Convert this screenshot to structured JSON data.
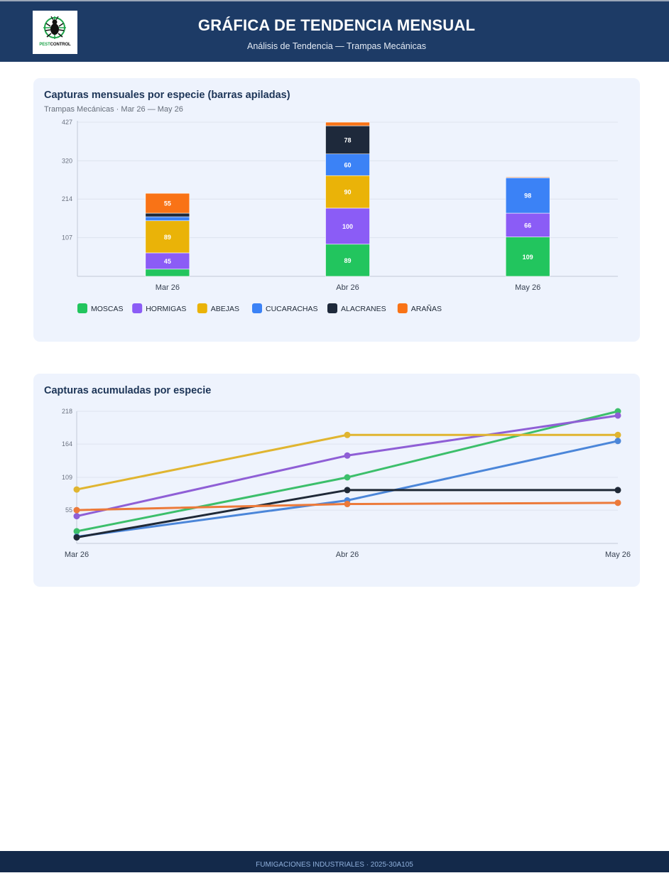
{
  "header": {
    "title": "GRÁFICA DE TENDENCIA MENSUAL",
    "subtitle": "Análisis de Tendencia — Trampas Mecánicas",
    "logo_text_a": "PEST",
    "logo_text_b": "CONTROL"
  },
  "footer": {
    "text": "FUMIGACIONES INDUSTRIALES · 2025-30A105"
  },
  "chart_data": [
    {
      "type": "bar",
      "stacked": true,
      "title": "Capturas mensuales por especie (barras apiladas)",
      "subtitle": "Trampas Mecánicas · Mar 26 — May 26",
      "categories": [
        "Mar 26",
        "Abr 26",
        "May 26"
      ],
      "ylim": [
        0,
        427
      ],
      "yticks": [
        "107",
        "214",
        "320",
        "427"
      ],
      "grid": true,
      "legend_position": "bottom-left",
      "series": [
        {
          "name": "MOSCAS",
          "color": "#22c55e",
          "values": [
            20,
            89,
            109
          ]
        },
        {
          "name": "HORMIGAS",
          "color": "#8b5cf6",
          "values": [
            45,
            100,
            66
          ]
        },
        {
          "name": "ABEJAS",
          "color": "#eab308",
          "values": [
            89,
            90,
            0
          ]
        },
        {
          "name": "CUCARACHAS",
          "color": "#3b82f6",
          "values": [
            11,
            60,
            98
          ]
        },
        {
          "name": "ALACRANES",
          "color": "#1e293b",
          "values": [
            10,
            78,
            0
          ]
        },
        {
          "name": "ARAÑAS",
          "color": "#f97316",
          "values": [
            55,
            10,
            2
          ]
        }
      ]
    },
    {
      "type": "line",
      "title": "Capturas acumuladas por especie",
      "categories": [
        "Mar 26",
        "Abr 26",
        "May 26"
      ],
      "ylim": [
        0,
        218
      ],
      "yticks": [
        "55",
        "109",
        "164",
        "218"
      ],
      "grid": true,
      "series": [
        {
          "name": "MOSCAS",
          "color": "#3cbf6b",
          "values": [
            20,
            109,
            218
          ]
        },
        {
          "name": "HORMIGAS",
          "color": "#8f5fd6",
          "values": [
            45,
            145,
            211
          ]
        },
        {
          "name": "ABEJAS",
          "color": "#e0b530",
          "values": [
            89,
            179,
            179
          ]
        },
        {
          "name": "CUCARACHAS",
          "color": "#4b86d9",
          "values": [
            11,
            71,
            169
          ]
        },
        {
          "name": "ALACRANES",
          "color": "#1f2937",
          "values": [
            10,
            88,
            88
          ]
        },
        {
          "name": "ARAÑAS",
          "color": "#ec7a3a",
          "values": [
            55,
            65,
            67
          ]
        }
      ]
    }
  ]
}
